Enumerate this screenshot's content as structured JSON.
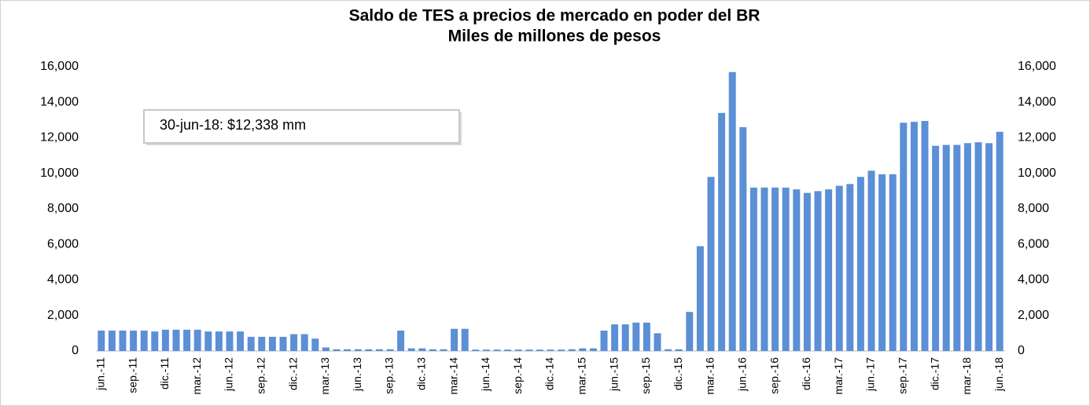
{
  "chart_data": {
    "type": "bar",
    "title": "Saldo de TES a precios de mercado en poder del BR",
    "subtitle": "Miles de millones de pesos",
    "annotation": "30-jun-18:  $12,338 mm",
    "categories": [
      "jun.-11",
      null,
      null,
      "sep.-11",
      null,
      null,
      "dic.-11",
      null,
      null,
      "mar.-12",
      null,
      null,
      "jun.-12",
      null,
      null,
      "sep.-12",
      null,
      null,
      "dic.-12",
      null,
      null,
      "mar.-13",
      null,
      null,
      "jun.-13",
      null,
      null,
      "sep.-13",
      null,
      null,
      "dic.-13",
      null,
      null,
      "mar.-14",
      null,
      null,
      "jun.-14",
      null,
      null,
      "sep.-14",
      null,
      null,
      "dic.-14",
      null,
      null,
      "mar.-15",
      null,
      null,
      "jun.-15",
      null,
      null,
      "sep.-15",
      null,
      null,
      "dic.-15",
      null,
      null,
      "mar.-16",
      null,
      null,
      "jun.-16",
      null,
      null,
      "sep.-16",
      null,
      null,
      "dic.-16",
      null,
      null,
      "mar.-17",
      null,
      null,
      "jun.-17",
      null,
      null,
      "sep.-17",
      null,
      null,
      "dic.-17",
      null,
      null,
      "mar.-18",
      null,
      null,
      "jun.-18"
    ],
    "values": [
      1150,
      1150,
      1150,
      1150,
      1150,
      1100,
      1200,
      1200,
      1200,
      1200,
      1100,
      1100,
      1100,
      1100,
      800,
      800,
      800,
      800,
      950,
      950,
      700,
      200,
      100,
      100,
      100,
      100,
      100,
      100,
      1150,
      150,
      150,
      100,
      100,
      1250,
      1250,
      80,
      80,
      80,
      80,
      80,
      80,
      80,
      80,
      80,
      100,
      150,
      150,
      1150,
      1500,
      1500,
      1600,
      1600,
      1000,
      100,
      100,
      2200,
      5900,
      9800,
      13400,
      15700,
      12600,
      9200,
      9200,
      9200,
      9200,
      9100,
      8900,
      9000,
      9100,
      9300,
      9400,
      9800,
      10150,
      9950,
      9950,
      12850,
      12900,
      12950,
      11550,
      11600,
      11600,
      11700,
      11750,
      11700,
      12338
    ],
    "color": "#5b8fd6",
    "ylim": [
      0,
      16000
    ],
    "yticks": [
      0,
      {
        "value": 2000,
        "label": "2,000"
      },
      {
        "value": 4000,
        "label": "4,000"
      },
      {
        "value": 6000,
        "label": "6,000"
      },
      {
        "value": 8000,
        "label": "8,000"
      },
      {
        "value": 10000,
        "label": "10,000"
      },
      {
        "value": 12000,
        "label": "12,000"
      },
      {
        "value": 14000,
        "label": "14,000"
      },
      {
        "value": 16000,
        "label": "16,000"
      }
    ],
    "y2lim": [
      0,
      16000
    ],
    "y2ticks": [
      0,
      {
        "value": 2000,
        "label": "2,000"
      },
      {
        "value": 4000,
        "label": "4,000"
      },
      {
        "value": 6000,
        "label": "6,000"
      },
      {
        "value": 8000,
        "label": "8,000"
      },
      {
        "value": 10000,
        "label": "10,000"
      },
      {
        "value": 12000,
        "label": "12,000"
      },
      {
        "value": 14000,
        "label": "14,000"
      },
      {
        "value": 16000,
        "label": "16,000"
      }
    ]
  }
}
